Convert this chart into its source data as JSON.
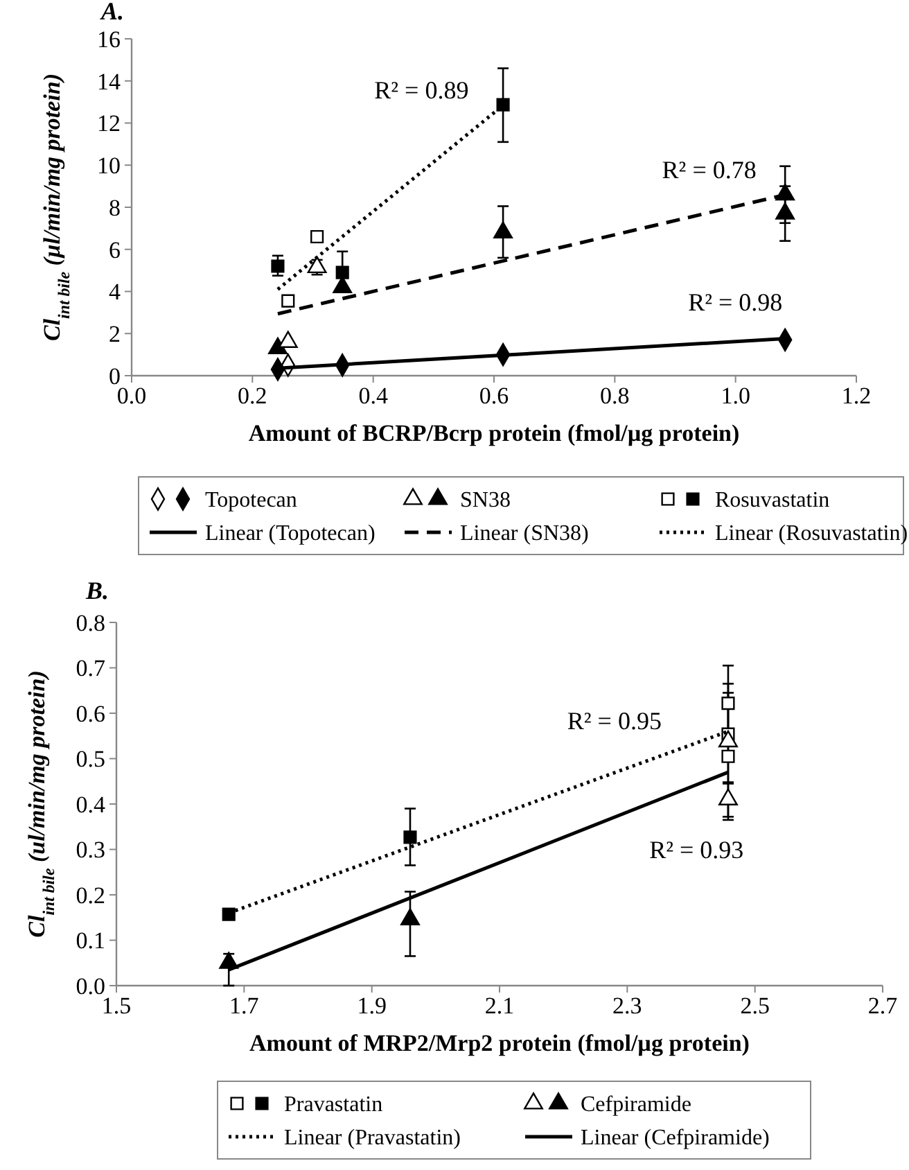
{
  "chart_data": [
    {
      "type": "scatter",
      "title": "A.",
      "xlabel": "Amount of BCRP/Bcrp protein (fmol/µg protein)",
      "ylabel": "Cl$_{int bile}$ (µl/min/mg protein)",
      "xlim": [
        0,
        1.2
      ],
      "ylim": [
        0,
        16
      ],
      "xticks": [
        {
          "value": 0,
          "label": "0.0"
        },
        0.2,
        0.4,
        0.6,
        0.8,
        {
          "value": 1,
          "label": "1.0"
        },
        1.2
      ],
      "yticks": [
        0,
        2,
        4,
        6,
        8,
        10,
        12,
        14,
        16
      ],
      "legend": "bottom",
      "grid": false,
      "series": [
        {
          "name": "Topotecan",
          "color": "#000000",
          "marker": "diamond",
          "x": [
            0.242,
            0.349,
            0.615,
            1.082
          ],
          "values": [
            0.3,
            0.5,
            1.0,
            1.7
          ]
        },
        {
          "color": "#ffffff",
          "marker": "diamond",
          "x": [
            0.259
          ],
          "values": [
            0.5
          ]
        },
        {
          "name": "SN38",
          "color": "#000000",
          "marker": "triangle",
          "x": [
            0.242,
            0.349,
            0.615,
            1.082,
            1.082
          ],
          "values": [
            1.3,
            4.2,
            6.8,
            8.6,
            7.7
          ],
          "errors": [
            null,
            null,
            [
              5.6,
              8.05
            ],
            [
              7.25,
              9.95
            ],
            [
              6.4,
              9.0
            ]
          ]
        },
        {
          "color": "#ffffff",
          "marker": "triangle",
          "x": [
            0.259,
            0.307
          ],
          "values": [
            1.6,
            5.15
          ],
          "errors": [
            null,
            [
              4.8,
              5.5
            ]
          ]
        },
        {
          "name": "Rosuvastatin",
          "color": "#000000",
          "marker": "square",
          "x": [
            0.242,
            0.349,
            0.615
          ],
          "values": [
            5.2,
            4.9,
            12.87
          ],
          "errors": [
            [
              4.75,
              5.7
            ],
            [
              4.2,
              5.9
            ],
            [
              11.1,
              14.6
            ]
          ]
        },
        {
          "color": "#ffffff",
          "marker": "square",
          "x": [
            0.259,
            0.307
          ],
          "values": [
            3.55,
            6.6
          ]
        },
        {
          "name": "Linear (Topotecan)",
          "type": "line",
          "color": "#000000",
          "line_style": "solid",
          "x": [
            0.242,
            1.082
          ],
          "values": [
            0.35,
            1.76
          ]
        },
        {
          "name": "Linear (SN38)",
          "type": "line",
          "color": "#000000",
          "line_style": "dashed",
          "x": [
            0.242,
            1.082
          ],
          "values": [
            2.94,
            8.59
          ]
        },
        {
          "name": "Linear (Rosuvastatin)",
          "type": "line",
          "color": "#000000",
          "line_style": "dotted",
          "x": [
            0.242,
            0.609
          ],
          "values": [
            4.1,
            12.7
          ]
        }
      ],
      "annotations": [
        "R² = 0.89",
        "R² = 0.78",
        "R² = 0.98"
      ]
    },
    {
      "type": "scatter",
      "title": "B.",
      "xlabel": "Amount of MRP2/Mrp2 protein (fmol/µg protein)",
      "ylabel": "Cl$_{int bile}$ (ul/min/mg protein)",
      "xlim": [
        1.5,
        2.7
      ],
      "ylim": [
        0,
        0.8
      ],
      "xticks": [
        1.5,
        1.7,
        1.9,
        2.1,
        2.3,
        2.5,
        2.7
      ],
      "yticks": [
        {
          "value": 0,
          "label": "0.0"
        },
        0.1,
        0.2,
        0.3,
        0.4,
        0.5,
        0.6,
        0.7,
        0.8
      ],
      "legend": "bottom",
      "grid": false,
      "series": [
        {
          "name": "Pravastatin",
          "color": "#000000",
          "marker": "square",
          "x": [
            1.676,
            1.96
          ],
          "values": [
            0.157,
            0.327
          ],
          "errors": [
            null,
            [
              0.265,
              0.39
            ]
          ]
        },
        {
          "color": "#ffffff",
          "marker": "square",
          "x": [
            2.458,
            2.458,
            2.458
          ],
          "values": [
            0.622,
            0.554,
            0.505
          ],
          "errors": [
            [
              0.54,
              0.705
            ],
            [
              0.445,
              0.665
            ],
            [
              0.365,
              0.645
            ]
          ]
        },
        {
          "name": "Cefpiramide",
          "color": "#000000",
          "marker": "triangle",
          "x": [
            1.676,
            1.96
          ],
          "values": [
            0.05,
            0.146
          ],
          "errors": [
            [
              0.0,
              0.07
            ],
            [
              0.065,
              0.207
            ]
          ]
        },
        {
          "color": "#ffffff",
          "marker": "triangle",
          "x": [
            2.458,
            2.458
          ],
          "values": [
            0.538,
            0.41
          ],
          "errors": [
            null,
            [
              0.372,
              0.448
            ]
          ]
        },
        {
          "name": "Linear (Pravastatin)",
          "type": "line",
          "color": "#000000",
          "line_style": "dotted",
          "x": [
            1.676,
            2.458
          ],
          "values": [
            0.16,
            0.56
          ]
        },
        {
          "name": "Linear (Cefpiramide)",
          "type": "line",
          "color": "#000000",
          "line_style": "solid",
          "x": [
            1.676,
            2.458
          ],
          "values": [
            0.035,
            0.47
          ]
        }
      ],
      "annotations": [
        "R² = 0.95",
        "R² = 0.93"
      ]
    }
  ]
}
